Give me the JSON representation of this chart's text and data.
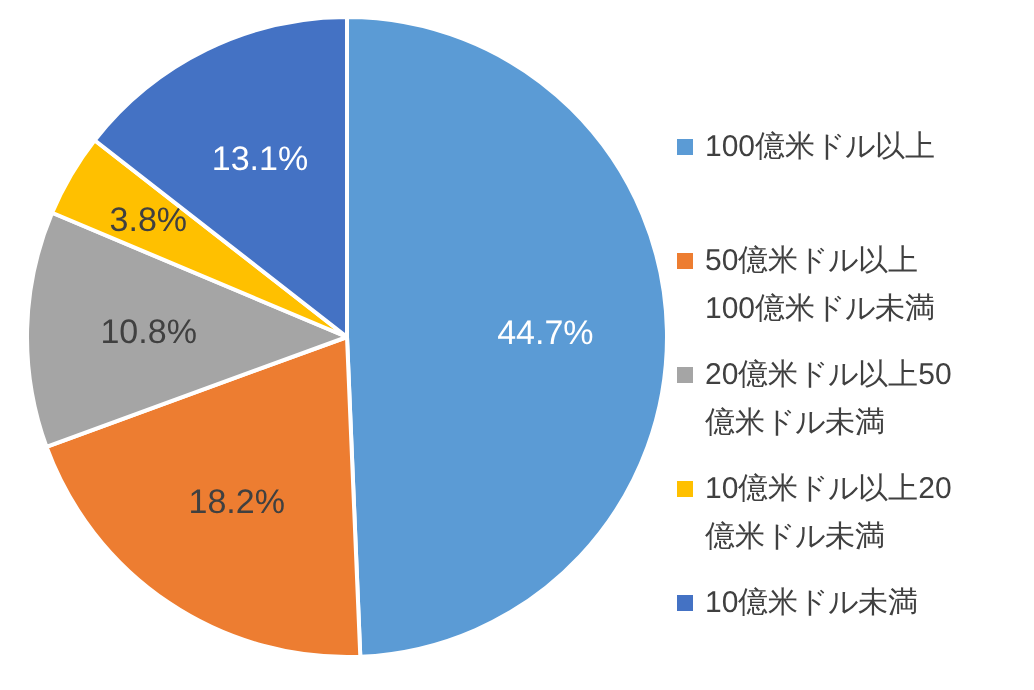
{
  "chart_data": {
    "type": "pie",
    "categories": [
      "100億米ドル以上",
      "50億米ドル以上\n100億米ドル未満",
      "20億米ドル以上50\n億米ドル未満",
      "10億米ドル以上20\n億米ドル未満",
      "10億米ドル未満"
    ],
    "values": [
      44.7,
      18.2,
      10.8,
      3.8,
      13.1
    ],
    "value_labels": [
      "44.7%",
      "18.2%",
      "10.8%",
      "3.8%",
      "13.1%"
    ],
    "colors": [
      "#5b9bd5",
      "#ed7d31",
      "#a5a5a5",
      "#ffc000",
      "#4472c4"
    ],
    "legend": "right"
  }
}
